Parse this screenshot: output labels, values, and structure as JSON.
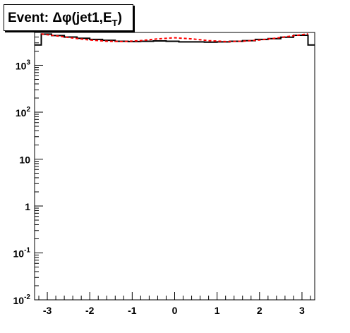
{
  "title": {
    "main": "Event: Δφ(jet1,E",
    "sub": "T",
    "close": ")"
  },
  "chart_data": {
    "type": "line",
    "yscale": "log",
    "xlim": [
      -3.3,
      3.3
    ],
    "ylim": [
      0.01,
      5000
    ],
    "xticks": [
      -3,
      -2,
      -1,
      0,
      1,
      2,
      3
    ],
    "xtick_labels": [
      "-3",
      "-2",
      "-1",
      "0",
      "1",
      "2",
      "3"
    ],
    "yticks": [
      {
        "value": 0.01,
        "base": "10",
        "exp": "-2"
      },
      {
        "value": 0.1,
        "base": "10",
        "exp": "-1"
      },
      {
        "value": 1,
        "base": "1",
        "exp": ""
      },
      {
        "value": 10,
        "base": "10",
        "exp": ""
      },
      {
        "value": 100,
        "base": "10",
        "exp": "2"
      },
      {
        "value": 1000,
        "base": "10",
        "exp": "3"
      }
    ],
    "series": [
      {
        "style": "histogram",
        "color": "#000000",
        "bin_edges": [
          -3.3,
          -3.142,
          -2.9,
          -2.6,
          -2.3,
          -2.0,
          -1.7,
          -1.4,
          -1.1,
          -0.8,
          -0.5,
          -0.2,
          0.1,
          0.4,
          0.7,
          1.0,
          1.3,
          1.6,
          1.9,
          2.2,
          2.5,
          2.8,
          3.142,
          3.3
        ],
        "values": [
          2700,
          4600,
          4300,
          4000,
          3750,
          3550,
          3400,
          3250,
          3200,
          3250,
          3300,
          3250,
          3150,
          3150,
          3100,
          3150,
          3250,
          3350,
          3550,
          3700,
          3950,
          4350,
          2700
        ]
      },
      {
        "style": "dashed",
        "color": "#ff0000",
        "x": [
          -3.142,
          -2.8,
          -2.4,
          -2.0,
          -1.6,
          -1.2,
          -0.8,
          -0.4,
          0.0,
          0.4,
          0.8,
          1.2,
          1.6,
          2.0,
          2.4,
          2.8,
          3.142
        ],
        "values": [
          4650,
          4250,
          3800,
          3450,
          3250,
          3200,
          3350,
          3650,
          3850,
          3650,
          3350,
          3200,
          3250,
          3450,
          3800,
          4250,
          4650
        ]
      }
    ]
  }
}
